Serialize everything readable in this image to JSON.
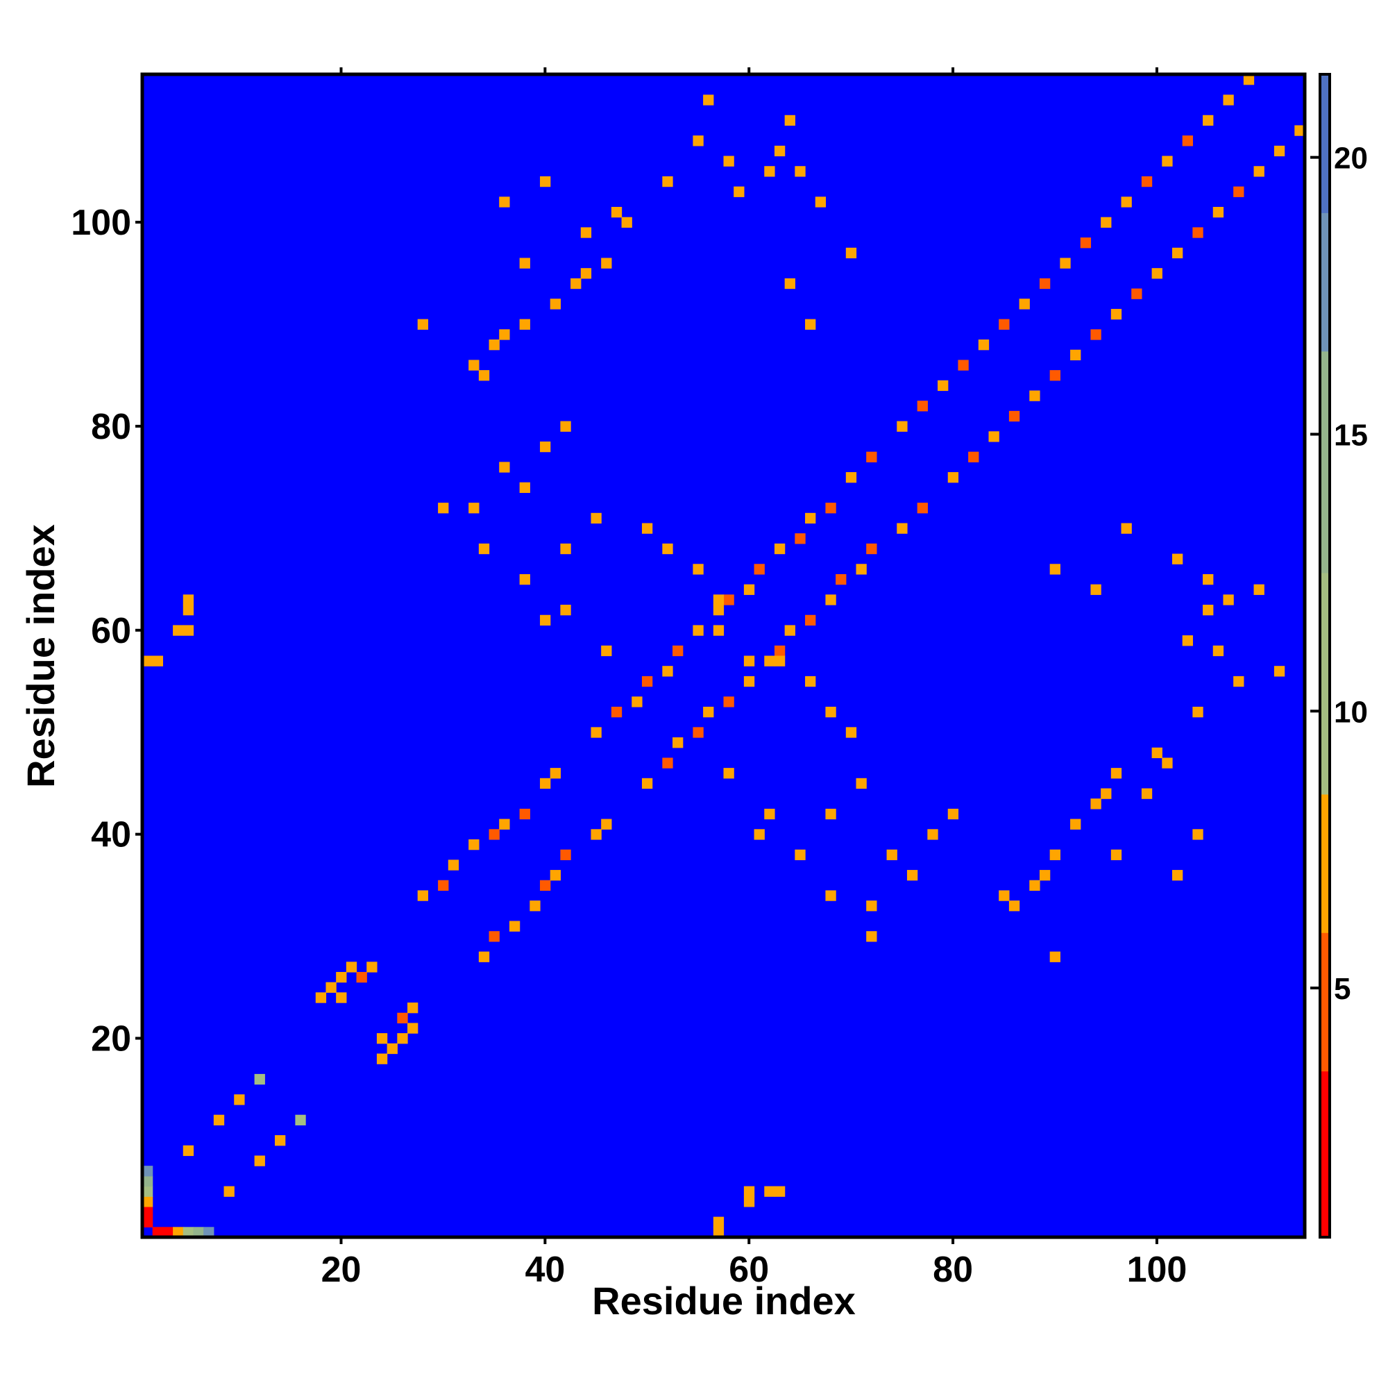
{
  "chart_data": {
    "type": "heatmap",
    "title": "",
    "xlabel": "Residue index",
    "ylabel": "Residue index",
    "xlim": [
      0.5,
      114.5
    ],
    "ylim": [
      0.5,
      114.5
    ],
    "x_ticks": [
      20,
      40,
      60,
      80,
      100
    ],
    "y_ticks": [
      20,
      40,
      60,
      80,
      100
    ],
    "x_tick_labels": [
      "20",
      "40",
      "60",
      "80",
      "100"
    ],
    "y_tick_labels": [
      "20",
      "40",
      "60",
      "80",
      "100"
    ],
    "grid": false,
    "symmetric": true,
    "n_residues": 114,
    "cell_value_description": "inter-residue distance; cells with value above 21 are rendered as the saturated blue background",
    "colorbar": {
      "range": [
        0.5,
        21.5
      ],
      "ticks": [
        5,
        10,
        15,
        20
      ],
      "tick_labels": [
        "5",
        "10",
        "15",
        "20"
      ],
      "position": "right",
      "bands": [
        {
          "from": 0.5,
          "to": 3.5,
          "color": "#ff0000"
        },
        {
          "from": 3.5,
          "to": 6.0,
          "color": "#ff5a00"
        },
        {
          "from": 6.0,
          "to": 8.5,
          "color": "#ffa500"
        },
        {
          "from": 8.5,
          "to": 12.5,
          "color": "#a5be82"
        },
        {
          "from": 12.5,
          "to": 16.5,
          "color": "#94b48c"
        },
        {
          "from": 16.5,
          "to": 19.0,
          "color": "#6f93b8"
        },
        {
          "from": 19.0,
          "to": 21.5,
          "color": "#4f72c4"
        }
      ],
      "over_color": "#0000ff"
    },
    "cells": [
      [
        1,
        1,
        0
      ],
      [
        1,
        2,
        1
      ],
      [
        1,
        3,
        3
      ],
      [
        1,
        4,
        7
      ],
      [
        1,
        5,
        11
      ],
      [
        1,
        6,
        15
      ],
      [
        1,
        7,
        18
      ],
      [
        5,
        9,
        6
      ],
      [
        8,
        12,
        7
      ],
      [
        10,
        14,
        8
      ],
      [
        12,
        16,
        9
      ],
      [
        18,
        24,
        6
      ],
      [
        19,
        25,
        6
      ],
      [
        20,
        26,
        7
      ],
      [
        21,
        27,
        7
      ],
      [
        22,
        26,
        5
      ],
      [
        23,
        27,
        6
      ],
      [
        24,
        20,
        6
      ],
      [
        28,
        34,
        6
      ],
      [
        30,
        35,
        5
      ],
      [
        31,
        37,
        6
      ],
      [
        33,
        39,
        6
      ],
      [
        35,
        40,
        5
      ],
      [
        36,
        41,
        6
      ],
      [
        38,
        42,
        5
      ],
      [
        40,
        45,
        6
      ],
      [
        41,
        46,
        7
      ],
      [
        45,
        50,
        6
      ],
      [
        47,
        52,
        5
      ],
      [
        49,
        53,
        6
      ],
      [
        50,
        55,
        5
      ],
      [
        52,
        56,
        6
      ],
      [
        53,
        58,
        5
      ],
      [
        55,
        60,
        6
      ],
      [
        57,
        62,
        6
      ],
      [
        58,
        63,
        5
      ],
      [
        60,
        64,
        6
      ],
      [
        61,
        66,
        5
      ],
      [
        63,
        68,
        6
      ],
      [
        65,
        69,
        5
      ],
      [
        66,
        71,
        6
      ],
      [
        68,
        72,
        5
      ],
      [
        70,
        75,
        6
      ],
      [
        72,
        77,
        5
      ],
      [
        75,
        80,
        6
      ],
      [
        77,
        82,
        5
      ],
      [
        79,
        84,
        6
      ],
      [
        81,
        86,
        5
      ],
      [
        83,
        88,
        6
      ],
      [
        85,
        90,
        5
      ],
      [
        87,
        92,
        6
      ],
      [
        89,
        94,
        5
      ],
      [
        91,
        96,
        6
      ],
      [
        93,
        98,
        5
      ],
      [
        95,
        100,
        6
      ],
      [
        97,
        102,
        6
      ],
      [
        99,
        104,
        5
      ],
      [
        101,
        106,
        6
      ],
      [
        103,
        108,
        5
      ],
      [
        105,
        110,
        6
      ],
      [
        107,
        112,
        6
      ],
      [
        109,
        114,
        7
      ],
      [
        5,
        60,
        7
      ],
      [
        5,
        62,
        6
      ],
      [
        2,
        57,
        6
      ],
      [
        57,
        2,
        6
      ],
      [
        60,
        5,
        7
      ],
      [
        63,
        5,
        6
      ],
      [
        60,
        4,
        7
      ],
      [
        57,
        1,
        6
      ],
      [
        34,
        85,
        7
      ],
      [
        36,
        89,
        6
      ],
      [
        38,
        90,
        7
      ],
      [
        33,
        86,
        6
      ],
      [
        35,
        88,
        7
      ],
      [
        105,
        65,
        6
      ],
      [
        107,
        63,
        7
      ],
      [
        103,
        59,
        6
      ],
      [
        110,
        64,
        7
      ],
      [
        112,
        56,
        6
      ],
      [
        106,
        58,
        7
      ],
      [
        101,
        47,
        6
      ],
      [
        99,
        44,
        7
      ],
      [
        104,
        40,
        6
      ],
      [
        96,
        38,
        7
      ],
      [
        102,
        36,
        6
      ],
      [
        66,
        90,
        6
      ],
      [
        64,
        94,
        7
      ],
      [
        70,
        97,
        6
      ],
      [
        67,
        102,
        7
      ],
      [
        62,
        105,
        6
      ],
      [
        55,
        108,
        7
      ],
      [
        52,
        104,
        6
      ],
      [
        48,
        100,
        7
      ],
      [
        44,
        95,
        6
      ],
      [
        28,
        90,
        6
      ],
      [
        34,
        68,
        7
      ],
      [
        38,
        65,
        6
      ],
      [
        42,
        62,
        7
      ],
      [
        30,
        72,
        6
      ],
      [
        60,
        57,
        6
      ],
      [
        63,
        57,
        7
      ],
      [
        66,
        55,
        6
      ],
      [
        68,
        52,
        7
      ],
      [
        70,
        50,
        6
      ],
      [
        72,
        33,
        6
      ],
      [
        74,
        38,
        7
      ],
      [
        76,
        36,
        6
      ],
      [
        78,
        40,
        7
      ],
      [
        80,
        42,
        6
      ],
      [
        88,
        35,
        6
      ],
      [
        90,
        38,
        7
      ],
      [
        92,
        41,
        6
      ],
      [
        94,
        43,
        7
      ],
      [
        96,
        46,
        6
      ],
      [
        58,
        46,
        6
      ],
      [
        61,
        40,
        7
      ],
      [
        65,
        38,
        6
      ],
      [
        68,
        42,
        7
      ],
      [
        71,
        45,
        6
      ]
    ]
  }
}
